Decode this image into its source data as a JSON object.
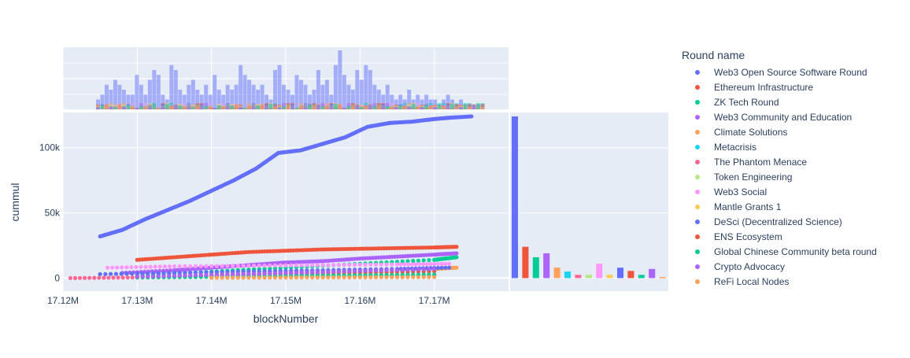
{
  "chart_data": {
    "type": "scatter",
    "xlabel": "blockNumber",
    "ylabel": "cummul",
    "x_ticks": [
      "17.12M",
      "17.13M",
      "17.14M",
      "17.15M",
      "17.16M",
      "17.17M"
    ],
    "y_ticks": [
      "0",
      "50k",
      "100k"
    ],
    "xlim": [
      17120000,
      17180000
    ],
    "ylim": [
      -10000,
      127000
    ],
    "legend_title": "Round name",
    "legend_position": "right",
    "grid": true,
    "marginal_top": "histogram",
    "marginal_right": "bar",
    "series": [
      {
        "name": "Web3 Open Source Software Round",
        "color": "#636efa",
        "x": [
          17125000,
          17128000,
          17131000,
          17134000,
          17137000,
          17140000,
          17143000,
          17146000,
          17149000,
          17152000,
          17155000,
          17158000,
          17161000,
          17164000,
          17167000,
          17170000,
          17172000,
          17175000
        ],
        "y": [
          32000,
          37000,
          45000,
          52000,
          59000,
          67000,
          75000,
          84000,
          96000,
          98000,
          103000,
          108000,
          116000,
          119000,
          120000,
          122000,
          123000,
          124000
        ]
      },
      {
        "name": "Ethereum Infrastructure",
        "color": "#EF553B",
        "x": [
          17130000,
          17135000,
          17140000,
          17145000,
          17150000,
          17155000,
          17160000,
          17165000,
          17170000,
          17173000
        ],
        "y": [
          14000,
          16000,
          18000,
          20000,
          21000,
          22000,
          22500,
          23000,
          23500,
          24000
        ]
      },
      {
        "name": "ZK Tech Round",
        "color": "#00cc96",
        "x": [
          17130000,
          17140000,
          17150000,
          17160000,
          17170000,
          17173000
        ],
        "y": [
          2000,
          5000,
          8000,
          11000,
          14000,
          16000
        ]
      },
      {
        "name": "Web3 Community and Education",
        "color": "#ab63fa",
        "x": [
          17128000,
          17135000,
          17140000,
          17145000,
          17150000,
          17155000,
          17160000,
          17165000,
          17170000,
          17173000
        ],
        "y": [
          4000,
          6000,
          8000,
          10000,
          12000,
          13000,
          15000,
          16500,
          18000,
          19000
        ]
      },
      {
        "name": "Climate Solutions",
        "color": "#FFA15A",
        "x": [
          17130000,
          17140000,
          17150000,
          17160000,
          17170000,
          17173000
        ],
        "y": [
          1000,
          2500,
          4000,
          5500,
          7000,
          8000
        ]
      },
      {
        "name": "Metacrisis",
        "color": "#19d3f3",
        "x": [
          17130000,
          17140000,
          17150000,
          17160000,
          17170000
        ],
        "y": [
          1000,
          2000,
          3000,
          4000,
          5000
        ]
      },
      {
        "name": "The Phantom Menace",
        "color": "#FF6692",
        "x": [
          17121000,
          17130000,
          17140000,
          17150000,
          17160000,
          17170000
        ],
        "y": [
          0,
          500,
          1000,
          1500,
          2000,
          2500
        ]
      },
      {
        "name": "Token Engineering",
        "color": "#B6E880",
        "x": [
          17130000,
          17140000,
          17150000,
          17160000,
          17170000
        ],
        "y": [
          500,
          1000,
          1500,
          2000,
          2500
        ]
      },
      {
        "name": "Web3 Social",
        "color": "#FF97FF",
        "x": [
          17126000,
          17135000,
          17145000,
          17155000,
          17165000,
          17172000
        ],
        "y": [
          8000,
          9000,
          9500,
          10000,
          10500,
          11000
        ]
      },
      {
        "name": "Mantle Grants 1",
        "color": "#FECB52",
        "x": [
          17130000,
          17140000,
          17150000,
          17160000,
          17170000
        ],
        "y": [
          500,
          1000,
          1500,
          2000,
          2500
        ]
      },
      {
        "name": "DeSci (Decentralized Science)",
        "color": "#636efa",
        "x": [
          17125000,
          17135000,
          17145000,
          17155000,
          17165000,
          17172000
        ],
        "y": [
          3000,
          4000,
          5000,
          6000,
          7000,
          8000
        ]
      },
      {
        "name": "ENS Ecosystem",
        "color": "#EF553B",
        "x": [
          17130000,
          17140000,
          17150000,
          17160000,
          17170000
        ],
        "y": [
          1000,
          2000,
          3500,
          4500,
          5500
        ]
      },
      {
        "name": "Global Chinese Community beta round",
        "color": "#00cc96",
        "x": [
          17130000,
          17140000,
          17150000,
          17160000,
          17170000
        ],
        "y": [
          500,
          1000,
          1500,
          2000,
          2500
        ]
      },
      {
        "name": "Crypto Advocacy",
        "color": "#ab63fa",
        "x": [
          17130000,
          17140000,
          17150000,
          17160000,
          17170000
        ],
        "y": [
          1000,
          2500,
          4000,
          5500,
          7000
        ]
      },
      {
        "name": "ReFi Local Nodes",
        "color": "#FFA15A",
        "x": [
          17140000,
          17150000,
          17160000,
          17170000
        ],
        "y": [
          200,
          400,
          600,
          800
        ]
      }
    ],
    "marginal_right_values": [
      124000,
      24000,
      16000,
      19000,
      8000,
      5000,
      2500,
      2500,
      11000,
      2500,
      8000,
      5500,
      2500,
      7000,
      800
    ],
    "marginal_top_counts": [
      2,
      3,
      5,
      4,
      6,
      5,
      4,
      3,
      3,
      7,
      5,
      3,
      6,
      8,
      7,
      3,
      2,
      9,
      8,
      4,
      3,
      5,
      6,
      4,
      3,
      5,
      3,
      7,
      4,
      3,
      5,
      4,
      5,
      9,
      7,
      6,
      5,
      4,
      5,
      3,
      2,
      8,
      9,
      5,
      4,
      3,
      7,
      6,
      5,
      3,
      4,
      8,
      5,
      6,
      3,
      9,
      12,
      7,
      5,
      4,
      8,
      6,
      9,
      8,
      5,
      4,
      3,
      5,
      3,
      2,
      3,
      2,
      4,
      2,
      3,
      2,
      3,
      2,
      2,
      1,
      2,
      3,
      2,
      1,
      2,
      1,
      1,
      1,
      1,
      1
    ]
  }
}
